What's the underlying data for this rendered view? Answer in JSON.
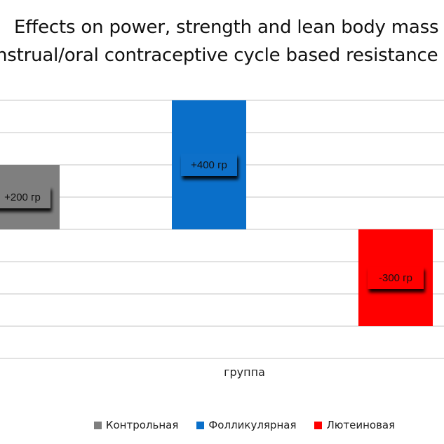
{
  "chart_data": {
    "type": "bar",
    "title": [
      "Effects on power, strength and lean body mass",
      "nstrual/oral contraceptive cycle based resistance"
    ],
    "xlabel": "группа",
    "ylabel": "",
    "categories": [
      ""
    ],
    "series": [
      {
        "name": "Контрольная",
        "values": [
          200
        ],
        "label": "+200 гр",
        "color": "#7f7f7f"
      },
      {
        "name": "Фолликулярная",
        "values": [
          400
        ],
        "label": "+400 гр",
        "color": "#0a6fc9"
      },
      {
        "name": "Лютеиновая",
        "values": [
          -300
        ],
        "label": "-300 гр",
        "color": "#ff0000"
      }
    ],
    "ylim": [
      -400,
      400
    ],
    "grid": true,
    "legend_position": "bottom"
  }
}
